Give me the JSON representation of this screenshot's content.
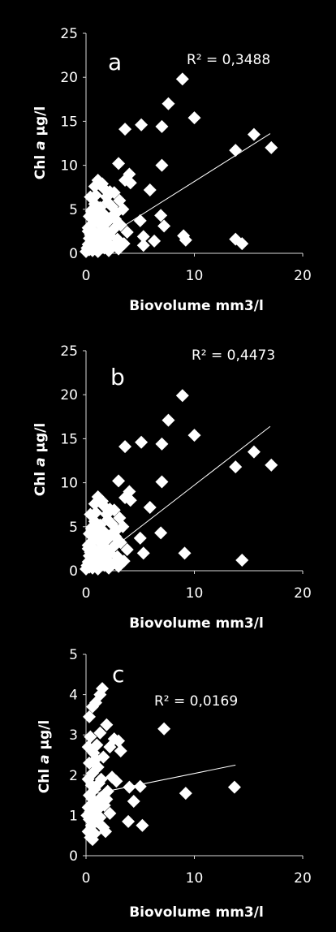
{
  "chart_data": [
    {
      "type": "scatter",
      "panel_label": "a",
      "r_squared_label": "R² = 0,3488",
      "xlabel": "Biovolume mm3/l",
      "ylabel_main": "Chl ",
      "ylabel_italic": "a",
      "ylabel_unit": " µg/l",
      "xlim": [
        0,
        20
      ],
      "ylim": [
        0,
        25
      ],
      "xticks": [
        0,
        10,
        20
      ],
      "yticks": [
        0,
        5,
        10,
        15,
        20,
        25
      ],
      "trendline": {
        "x": [
          0,
          17
        ],
        "y": [
          0.4,
          13.6
        ]
      },
      "points": [
        [
          8.9,
          19.8
        ],
        [
          7.6,
          17.0
        ],
        [
          10.0,
          15.4
        ],
        [
          5.1,
          14.6
        ],
        [
          7.0,
          14.4
        ],
        [
          3.6,
          14.1
        ],
        [
          15.5,
          13.5
        ],
        [
          17.1,
          12.0
        ],
        [
          13.8,
          11.7
        ],
        [
          7.0,
          10.0
        ],
        [
          3.0,
          10.2
        ],
        [
          4.0,
          9.0
        ],
        [
          4.1,
          8.0
        ],
        [
          3.6,
          8.3
        ],
        [
          1.1,
          8.3
        ],
        [
          1.5,
          7.9
        ],
        [
          0.8,
          7.6
        ],
        [
          5.9,
          7.2
        ],
        [
          2.2,
          7.0
        ],
        [
          2.6,
          6.9
        ],
        [
          0.4,
          6.4
        ],
        [
          1.9,
          6.4
        ],
        [
          3.1,
          6.0
        ],
        [
          2.0,
          5.8
        ],
        [
          0.8,
          5.6
        ],
        [
          1.3,
          5.2
        ],
        [
          3.4,
          5.0
        ],
        [
          0.5,
          4.8
        ],
        [
          2.8,
          4.6
        ],
        [
          1.6,
          4.5
        ],
        [
          0.3,
          4.2
        ],
        [
          6.9,
          4.3
        ],
        [
          2.3,
          4.1
        ],
        [
          1.0,
          3.9
        ],
        [
          5.0,
          3.7
        ],
        [
          2.0,
          3.6
        ],
        [
          0.6,
          3.4
        ],
        [
          3.2,
          3.2
        ],
        [
          1.4,
          3.1
        ],
        [
          7.2,
          3.1
        ],
        [
          0.2,
          2.9
        ],
        [
          2.6,
          2.8
        ],
        [
          1.8,
          2.6
        ],
        [
          0.7,
          2.5
        ],
        [
          3.8,
          2.4
        ],
        [
          1.2,
          2.3
        ],
        [
          0.4,
          2.1
        ],
        [
          2.2,
          2.0
        ],
        [
          9.0,
          2.0
        ],
        [
          5.3,
          1.9
        ],
        [
          1.6,
          1.9
        ],
        [
          0.3,
          1.7
        ],
        [
          13.8,
          1.6
        ],
        [
          2.9,
          1.6
        ],
        [
          9.2,
          1.5
        ],
        [
          1.0,
          1.5
        ],
        [
          6.3,
          1.4
        ],
        [
          0.5,
          1.3
        ],
        [
          2.0,
          1.2
        ],
        [
          14.4,
          1.1
        ],
        [
          3.5,
          1.1
        ],
        [
          0.2,
          1.0
        ],
        [
          1.3,
          0.9
        ],
        [
          5.3,
          0.9
        ],
        [
          0.7,
          0.8
        ],
        [
          2.5,
          0.8
        ],
        [
          0.1,
          0.6
        ],
        [
          1.7,
          0.6
        ],
        [
          0.9,
          0.5
        ],
        [
          3.0,
          0.5
        ],
        [
          0.3,
          0.4
        ],
        [
          0.6,
          0.3
        ],
        [
          1.1,
          0.2
        ],
        [
          0.0,
          0.2
        ],
        [
          2.1,
          0.3
        ],
        [
          0.4,
          1.7
        ],
        [
          1.5,
          3.5
        ],
        [
          2.4,
          5.3
        ],
        [
          0.9,
          6.6
        ],
        [
          1.7,
          7.3
        ],
        [
          0.2,
          2.5
        ],
        [
          1.0,
          4.6
        ],
        [
          2.7,
          3.9
        ],
        [
          0.6,
          5.0
        ]
      ]
    },
    {
      "type": "scatter",
      "panel_label": "b",
      "r_squared_label": "R² = 0,4473",
      "xlabel": "Biovolume mm3/l",
      "ylabel_main": "Chl ",
      "ylabel_italic": "a",
      "ylabel_unit": " µg/l",
      "xlim": [
        0,
        20
      ],
      "ylim": [
        0,
        25
      ],
      "xticks": [
        0,
        10,
        20
      ],
      "yticks": [
        0,
        5,
        10,
        15,
        20,
        25
      ],
      "trendline": {
        "x": [
          0,
          17
        ],
        "y": [
          0.2,
          16.4
        ]
      },
      "points": [
        [
          8.9,
          19.9
        ],
        [
          7.6,
          17.1
        ],
        [
          10.0,
          15.4
        ],
        [
          5.1,
          14.6
        ],
        [
          7.0,
          14.4
        ],
        [
          3.6,
          14.1
        ],
        [
          15.5,
          13.5
        ],
        [
          17.1,
          12.0
        ],
        [
          13.8,
          11.8
        ],
        [
          7.0,
          10.1
        ],
        [
          3.0,
          10.2
        ],
        [
          4.0,
          9.0
        ],
        [
          4.1,
          8.0
        ],
        [
          3.6,
          8.3
        ],
        [
          1.1,
          8.4
        ],
        [
          1.5,
          7.9
        ],
        [
          0.8,
          7.6
        ],
        [
          5.9,
          7.2
        ],
        [
          2.2,
          7.0
        ],
        [
          2.6,
          6.9
        ],
        [
          0.4,
          6.4
        ],
        [
          1.9,
          6.4
        ],
        [
          3.1,
          6.0
        ],
        [
          2.0,
          5.8
        ],
        [
          0.8,
          5.6
        ],
        [
          1.3,
          5.2
        ],
        [
          3.4,
          5.0
        ],
        [
          0.5,
          4.8
        ],
        [
          2.8,
          4.6
        ],
        [
          1.6,
          4.5
        ],
        [
          0.3,
          4.2
        ],
        [
          6.9,
          4.3
        ],
        [
          2.3,
          4.1
        ],
        [
          1.0,
          3.9
        ],
        [
          5.0,
          3.7
        ],
        [
          2.0,
          3.6
        ],
        [
          0.6,
          3.4
        ],
        [
          3.2,
          3.2
        ],
        [
          1.4,
          3.1
        ],
        [
          0.2,
          2.9
        ],
        [
          2.6,
          2.8
        ],
        [
          1.8,
          2.6
        ],
        [
          0.7,
          2.5
        ],
        [
          3.8,
          2.4
        ],
        [
          1.2,
          2.3
        ],
        [
          0.4,
          2.1
        ],
        [
          2.2,
          2.0
        ],
        [
          9.1,
          2.0
        ],
        [
          5.3,
          2.0
        ],
        [
          1.6,
          1.9
        ],
        [
          0.3,
          1.7
        ],
        [
          2.9,
          1.6
        ],
        [
          1.0,
          1.5
        ],
        [
          0.5,
          1.3
        ],
        [
          2.0,
          1.2
        ],
        [
          14.4,
          1.2
        ],
        [
          3.5,
          1.1
        ],
        [
          0.2,
          1.0
        ],
        [
          1.3,
          0.9
        ],
        [
          0.7,
          0.8
        ],
        [
          2.5,
          0.8
        ],
        [
          0.1,
          0.6
        ],
        [
          1.7,
          0.6
        ],
        [
          0.9,
          0.5
        ],
        [
          3.0,
          0.5
        ],
        [
          0.3,
          0.4
        ],
        [
          0.6,
          0.3
        ],
        [
          1.1,
          0.2
        ],
        [
          0.0,
          0.2
        ],
        [
          2.1,
          0.3
        ],
        [
          0.4,
          1.7
        ],
        [
          1.5,
          3.5
        ],
        [
          2.4,
          5.3
        ],
        [
          0.9,
          6.6
        ],
        [
          1.7,
          7.3
        ],
        [
          0.2,
          2.5
        ],
        [
          1.0,
          4.6
        ],
        [
          2.7,
          3.9
        ],
        [
          0.6,
          5.0
        ]
      ]
    },
    {
      "type": "scatter",
      "panel_label": "c",
      "r_squared_label": "R² = 0,0169",
      "xlabel": "Biovolume mm3/l",
      "ylabel_main": "Chl ",
      "ylabel_italic": "a",
      "ylabel_unit": " µg/l",
      "xlim": [
        0,
        20
      ],
      "ylim": [
        0,
        5
      ],
      "xticks": [
        0,
        10,
        20
      ],
      "yticks": [
        0,
        1,
        2,
        3,
        4,
        5
      ],
      "trendline": {
        "x": [
          1,
          13.8
        ],
        "y": [
          1.55,
          2.25
        ]
      },
      "points": [
        [
          1.5,
          4.15
        ],
        [
          1.3,
          4.0
        ],
        [
          0.9,
          3.8
        ],
        [
          0.6,
          3.7
        ],
        [
          0.3,
          3.45
        ],
        [
          1.9,
          3.25
        ],
        [
          7.2,
          3.15
        ],
        [
          1.3,
          3.05
        ],
        [
          0.4,
          2.95
        ],
        [
          2.6,
          2.9
        ],
        [
          3.0,
          2.85
        ],
        [
          1.0,
          2.75
        ],
        [
          2.2,
          2.7
        ],
        [
          3.2,
          2.6
        ],
        [
          0.7,
          2.55
        ],
        [
          1.6,
          2.45
        ],
        [
          0.3,
          2.3
        ],
        [
          1.1,
          2.2
        ],
        [
          0.6,
          2.05
        ],
        [
          2.4,
          1.95
        ],
        [
          0.2,
          1.9
        ],
        [
          2.8,
          1.85
        ],
        [
          1.2,
          1.8
        ],
        [
          0.5,
          1.75
        ],
        [
          4.0,
          1.7
        ],
        [
          5.0,
          1.72
        ],
        [
          13.7,
          1.7
        ],
        [
          0.8,
          1.65
        ],
        [
          2.0,
          1.6
        ],
        [
          9.2,
          1.55
        ],
        [
          0.3,
          1.5
        ],
        [
          1.4,
          1.45
        ],
        [
          0.6,
          1.4
        ],
        [
          4.4,
          1.35
        ],
        [
          0.9,
          1.3
        ],
        [
          1.7,
          1.25
        ],
        [
          0.2,
          1.2
        ],
        [
          1.1,
          1.15
        ],
        [
          0.4,
          1.1
        ],
        [
          2.2,
          1.05
        ],
        [
          0.7,
          1.0
        ],
        [
          1.3,
          0.95
        ],
        [
          0.3,
          0.9
        ],
        [
          3.9,
          0.85
        ],
        [
          1.0,
          0.85
        ],
        [
          5.2,
          0.75
        ],
        [
          0.5,
          0.75
        ],
        [
          1.6,
          0.7
        ],
        [
          0.2,
          0.6
        ],
        [
          0.8,
          0.55
        ],
        [
          0.4,
          0.45
        ],
        [
          0.6,
          0.4
        ],
        [
          1.8,
          0.6
        ],
        [
          0.1,
          1.0
        ],
        [
          1.9,
          1.4
        ],
        [
          0.9,
          2.4
        ],
        [
          1.4,
          1.9
        ],
        [
          0.2,
          2.7
        ]
      ]
    }
  ]
}
